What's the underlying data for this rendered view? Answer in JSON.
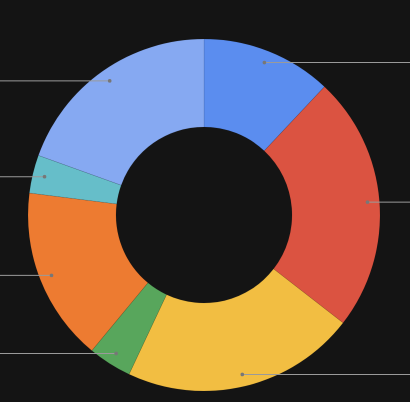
{
  "chart_data": {
    "type": "donut",
    "values": [
      12,
      23.5,
      21.5,
      4,
      16,
      3.5,
      19.5
    ],
    "colors": [
      "#5b8def",
      "#db5341",
      "#f2be42",
      "#58a65c",
      "#ed7b31",
      "#66bec9",
      "#86a9f2"
    ]
  }
}
